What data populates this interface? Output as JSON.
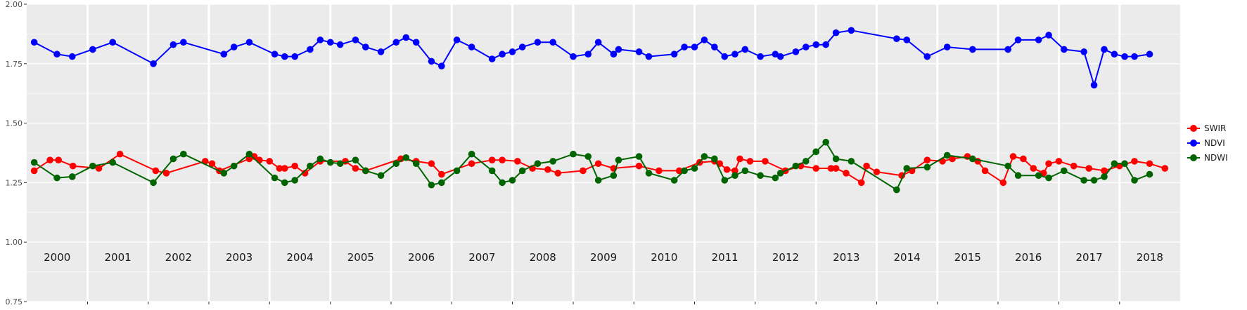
{
  "chart_data": {
    "type": "line",
    "title": "",
    "xlabel": "",
    "ylabel": "",
    "ylim": [
      0.75,
      2.0
    ],
    "xlim": [
      "2000-01-01",
      "2019-01-01"
    ],
    "y_ticks": [
      "0.75",
      "1.00",
      "1.25",
      "1.50",
      "1.75",
      "2.00"
    ],
    "year_labels": [
      "2000",
      "2001",
      "2002",
      "2003",
      "2004",
      "2005",
      "2006",
      "2007",
      "2008",
      "2009",
      "2010",
      "2011",
      "2012",
      "2013",
      "2014",
      "2015",
      "2016",
      "2017",
      "2018"
    ],
    "grid": true,
    "legend_position": "right",
    "colors": {
      "panel": "#ebebeb",
      "grid": "#ffffff"
    },
    "series": [
      {
        "name": "SWIR",
        "color": "#ff0000",
        "points": [
          [
            "2000-02-15",
            1.3
          ],
          [
            "2000-05-20",
            1.345
          ],
          [
            "2000-07-10",
            1.345
          ],
          [
            "2000-10-05",
            1.32
          ],
          [
            "2001-03-10",
            1.31
          ],
          [
            "2001-07-15",
            1.37
          ],
          [
            "2002-02-15",
            1.3
          ],
          [
            "2002-04-20",
            1.29
          ],
          [
            "2002-12-10",
            1.34
          ],
          [
            "2003-01-20",
            1.33
          ],
          [
            "2003-03-05",
            1.3
          ],
          [
            "2003-09-01",
            1.35
          ],
          [
            "2003-10-01",
            1.36
          ],
          [
            "2003-11-01",
            1.345
          ],
          [
            "2004-01-01",
            1.34
          ],
          [
            "2004-03-01",
            1.31
          ],
          [
            "2004-04-01",
            1.31
          ],
          [
            "2004-06-01",
            1.32
          ],
          [
            "2004-08-01",
            1.29
          ],
          [
            "2004-11-01",
            1.34
          ],
          [
            "2005-04-01",
            1.34
          ],
          [
            "2005-06-01",
            1.31
          ],
          [
            "2005-08-01",
            1.3
          ],
          [
            "2006-03-01",
            1.35
          ],
          [
            "2006-06-01",
            1.34
          ],
          [
            "2006-09-01",
            1.33
          ],
          [
            "2006-11-01",
            1.285
          ],
          [
            "2007-05-01",
            1.33
          ],
          [
            "2007-09-01",
            1.345
          ],
          [
            "2007-11-01",
            1.345
          ],
          [
            "2008-02-01",
            1.34
          ],
          [
            "2008-05-01",
            1.31
          ],
          [
            "2008-08-01",
            1.305
          ],
          [
            "2008-10-01",
            1.29
          ],
          [
            "2009-03-01",
            1.3
          ],
          [
            "2009-06-01",
            1.33
          ],
          [
            "2009-09-01",
            1.31
          ],
          [
            "2010-02-01",
            1.32
          ],
          [
            "2010-06-01",
            1.3
          ],
          [
            "2010-10-01",
            1.3
          ],
          [
            "2011-02-01",
            1.335
          ],
          [
            "2011-05-01",
            1.34
          ],
          [
            "2011-06-01",
            1.33
          ],
          [
            "2011-07-15",
            1.305
          ],
          [
            "2011-09-01",
            1.3
          ],
          [
            "2011-10-01",
            1.35
          ],
          [
            "2011-12-01",
            1.34
          ],
          [
            "2012-03-01",
            1.34
          ],
          [
            "2012-07-01",
            1.3
          ],
          [
            "2012-10-01",
            1.32
          ],
          [
            "2013-01-01",
            1.31
          ],
          [
            "2013-04-01",
            1.31
          ],
          [
            "2013-05-01",
            1.31
          ],
          [
            "2013-07-01",
            1.29
          ],
          [
            "2013-10-01",
            1.25
          ],
          [
            "2013-11-01",
            1.32
          ],
          [
            "2014-01-01",
            1.295
          ],
          [
            "2014-06-01",
            1.28
          ],
          [
            "2014-08-01",
            1.3
          ],
          [
            "2014-11-01",
            1.345
          ],
          [
            "2015-02-01",
            1.34
          ],
          [
            "2015-04-01",
            1.35
          ],
          [
            "2015-07-01",
            1.36
          ],
          [
            "2015-09-01",
            1.34
          ],
          [
            "2015-10-15",
            1.3
          ],
          [
            "2016-02-01",
            1.25
          ],
          [
            "2016-04-01",
            1.36
          ],
          [
            "2016-06-01",
            1.35
          ],
          [
            "2016-08-01",
            1.31
          ],
          [
            "2016-10-01",
            1.29
          ],
          [
            "2016-11-01",
            1.33
          ],
          [
            "2017-01-01",
            1.34
          ],
          [
            "2017-04-01",
            1.32
          ],
          [
            "2017-07-01",
            1.31
          ],
          [
            "2017-10-01",
            1.3
          ],
          [
            "2018-01-01",
            1.32
          ],
          [
            "2018-04-01",
            1.34
          ],
          [
            "2018-07-01",
            1.33
          ],
          [
            "2018-10-01",
            1.31
          ]
        ]
      },
      {
        "name": "NDVI",
        "color": "#0000ff",
        "points": [
          [
            "2000-02-15",
            1.84
          ],
          [
            "2000-07-01",
            1.79
          ],
          [
            "2000-10-01",
            1.78
          ],
          [
            "2001-02-01",
            1.81
          ],
          [
            "2001-06-01",
            1.84
          ],
          [
            "2002-02-01",
            1.75
          ],
          [
            "2002-06-01",
            1.83
          ],
          [
            "2002-08-01",
            1.84
          ],
          [
            "2003-04-01",
            1.79
          ],
          [
            "2003-06-01",
            1.82
          ],
          [
            "2003-09-01",
            1.84
          ],
          [
            "2004-02-01",
            1.79
          ],
          [
            "2004-04-01",
            1.78
          ],
          [
            "2004-06-01",
            1.78
          ],
          [
            "2004-09-01",
            1.81
          ],
          [
            "2004-11-01",
            1.85
          ],
          [
            "2005-01-01",
            1.84
          ],
          [
            "2005-03-01",
            1.83
          ],
          [
            "2005-06-01",
            1.85
          ],
          [
            "2005-08-01",
            1.82
          ],
          [
            "2005-11-01",
            1.8
          ],
          [
            "2006-02-01",
            1.84
          ],
          [
            "2006-04-01",
            1.86
          ],
          [
            "2006-06-01",
            1.84
          ],
          [
            "2006-09-01",
            1.76
          ],
          [
            "2006-11-01",
            1.74
          ],
          [
            "2007-02-01",
            1.85
          ],
          [
            "2007-05-01",
            1.82
          ],
          [
            "2007-09-01",
            1.77
          ],
          [
            "2007-11-01",
            1.79
          ],
          [
            "2008-01-01",
            1.8
          ],
          [
            "2008-03-01",
            1.82
          ],
          [
            "2008-06-01",
            1.84
          ],
          [
            "2008-09-01",
            1.84
          ],
          [
            "2009-01-01",
            1.78
          ],
          [
            "2009-04-01",
            1.79
          ],
          [
            "2009-06-01",
            1.84
          ],
          [
            "2009-09-01",
            1.79
          ],
          [
            "2009-10-01",
            1.81
          ],
          [
            "2010-02-01",
            1.8
          ],
          [
            "2010-04-01",
            1.78
          ],
          [
            "2010-09-01",
            1.79
          ],
          [
            "2010-11-01",
            1.82
          ],
          [
            "2011-01-01",
            1.82
          ],
          [
            "2011-03-01",
            1.85
          ],
          [
            "2011-05-01",
            1.82
          ],
          [
            "2011-07-01",
            1.78
          ],
          [
            "2011-09-01",
            1.79
          ],
          [
            "2011-11-01",
            1.81
          ],
          [
            "2012-02-01",
            1.78
          ],
          [
            "2012-05-01",
            1.79
          ],
          [
            "2012-06-01",
            1.78
          ],
          [
            "2012-09-01",
            1.8
          ],
          [
            "2012-11-01",
            1.82
          ],
          [
            "2013-01-01",
            1.83
          ],
          [
            "2013-03-01",
            1.83
          ],
          [
            "2013-05-01",
            1.88
          ],
          [
            "2013-08-01",
            1.89
          ],
          [
            "2014-05-01",
            1.855
          ],
          [
            "2014-07-01",
            1.85
          ],
          [
            "2014-11-01",
            1.78
          ],
          [
            "2015-03-01",
            1.82
          ],
          [
            "2015-08-01",
            1.81
          ],
          [
            "2016-03-01",
            1.81
          ],
          [
            "2016-05-01",
            1.85
          ],
          [
            "2016-09-01",
            1.85
          ],
          [
            "2016-11-01",
            1.87
          ],
          [
            "2017-02-01",
            1.81
          ],
          [
            "2017-06-01",
            1.8
          ],
          [
            "2017-08-01",
            1.66
          ],
          [
            "2017-10-01",
            1.81
          ],
          [
            "2017-12-01",
            1.79
          ],
          [
            "2018-02-01",
            1.78
          ],
          [
            "2018-04-01",
            1.78
          ],
          [
            "2018-07-01",
            1.79
          ]
        ]
      },
      {
        "name": "NDWI",
        "color": "#006400",
        "points": [
          [
            "2000-02-15",
            1.335
          ],
          [
            "2000-07-01",
            1.27
          ],
          [
            "2000-10-01",
            1.275
          ],
          [
            "2001-02-01",
            1.32
          ],
          [
            "2001-06-01",
            1.335
          ],
          [
            "2002-02-01",
            1.25
          ],
          [
            "2002-06-01",
            1.35
          ],
          [
            "2002-08-01",
            1.37
          ],
          [
            "2003-04-01",
            1.29
          ],
          [
            "2003-06-01",
            1.32
          ],
          [
            "2003-09-01",
            1.37
          ],
          [
            "2004-02-01",
            1.27
          ],
          [
            "2004-04-01",
            1.25
          ],
          [
            "2004-06-01",
            1.26
          ],
          [
            "2004-09-01",
            1.32
          ],
          [
            "2004-11-01",
            1.35
          ],
          [
            "2005-01-01",
            1.335
          ],
          [
            "2005-03-01",
            1.33
          ],
          [
            "2005-06-01",
            1.345
          ],
          [
            "2005-08-01",
            1.3
          ],
          [
            "2005-11-01",
            1.28
          ],
          [
            "2006-02-01",
            1.33
          ],
          [
            "2006-04-01",
            1.355
          ],
          [
            "2006-06-01",
            1.33
          ],
          [
            "2006-09-01",
            1.24
          ],
          [
            "2006-11-01",
            1.25
          ],
          [
            "2007-02-01",
            1.3
          ],
          [
            "2007-05-01",
            1.37
          ],
          [
            "2007-09-01",
            1.3
          ],
          [
            "2007-11-01",
            1.25
          ],
          [
            "2008-01-01",
            1.26
          ],
          [
            "2008-03-01",
            1.3
          ],
          [
            "2008-06-01",
            1.33
          ],
          [
            "2008-09-01",
            1.34
          ],
          [
            "2009-01-01",
            1.37
          ],
          [
            "2009-04-01",
            1.36
          ],
          [
            "2009-06-01",
            1.26
          ],
          [
            "2009-09-01",
            1.28
          ],
          [
            "2009-10-01",
            1.345
          ],
          [
            "2010-02-01",
            1.36
          ],
          [
            "2010-04-01",
            1.29
          ],
          [
            "2010-09-01",
            1.26
          ],
          [
            "2010-11-01",
            1.3
          ],
          [
            "2011-01-01",
            1.31
          ],
          [
            "2011-03-01",
            1.36
          ],
          [
            "2011-05-01",
            1.35
          ],
          [
            "2011-07-01",
            1.26
          ],
          [
            "2011-09-01",
            1.28
          ],
          [
            "2011-11-01",
            1.3
          ],
          [
            "2012-02-01",
            1.28
          ],
          [
            "2012-05-01",
            1.27
          ],
          [
            "2012-06-01",
            1.29
          ],
          [
            "2012-09-01",
            1.32
          ],
          [
            "2012-11-01",
            1.34
          ],
          [
            "2013-01-01",
            1.38
          ],
          [
            "2013-03-01",
            1.42
          ],
          [
            "2013-05-01",
            1.35
          ],
          [
            "2013-08-01",
            1.34
          ],
          [
            "2014-05-01",
            1.22
          ],
          [
            "2014-07-01",
            1.31
          ],
          [
            "2014-11-01",
            1.315
          ],
          [
            "2015-03-01",
            1.365
          ],
          [
            "2015-08-01",
            1.35
          ],
          [
            "2016-03-01",
            1.32
          ],
          [
            "2016-05-01",
            1.28
          ],
          [
            "2016-09-01",
            1.28
          ],
          [
            "2016-11-01",
            1.27
          ],
          [
            "2017-02-01",
            1.3
          ],
          [
            "2017-06-01",
            1.26
          ],
          [
            "2017-08-01",
            1.26
          ],
          [
            "2017-10-01",
            1.275
          ],
          [
            "2017-12-01",
            1.33
          ],
          [
            "2018-02-01",
            1.33
          ],
          [
            "2018-04-01",
            1.26
          ],
          [
            "2018-07-01",
            1.285
          ]
        ]
      }
    ]
  }
}
